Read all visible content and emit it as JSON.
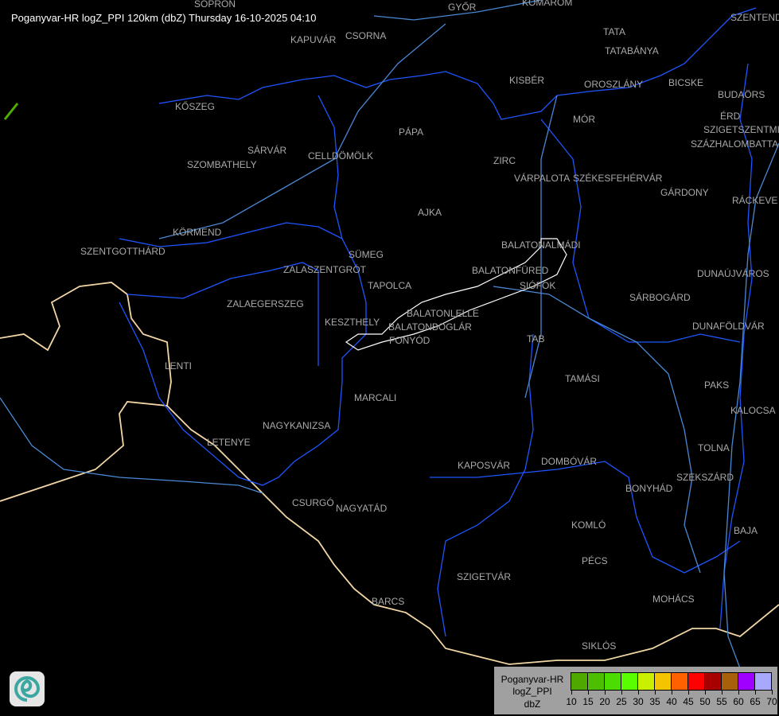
{
  "title": "Poganyvar-HR logZ_PPI 120km (dbZ) Thursday 16-10-2025 04:10",
  "colors": {
    "county_border": "#1f55ff",
    "river": "#4a88d4",
    "national_border": "#f2d6a6",
    "lake_outline": "#ffffff",
    "label": "#a9a9a9",
    "echo": "#4fae00"
  },
  "cities": [
    "SOPRON",
    "GYŐR",
    "KOMÁROM",
    "SZENTEND",
    "TATA",
    "TATABÁNYA",
    "KAPUVÁR",
    "CSORNA",
    "KISBÉR",
    "OROSZLÁNY",
    "BICSKE",
    "BUDAÖRS",
    "KŐSZEG",
    "ÉRD",
    "MÓR",
    "SZIGETSZENTMI",
    "SZÁZHALOMBATTA",
    "PÁPA",
    "SÁRVÁR",
    "CELLDÖMÖLK",
    "SZOMBATHELY",
    "ZIRC",
    "VÁRPALOTA",
    "SZÉKESFEHÉRVÁR",
    "GÁRDONY",
    "RÁCKEVE",
    "AJKA",
    "KÖRMEND",
    "BALATONALMÁDI",
    "SZENTGOTTHÁRD",
    "SÜMEG",
    "ZALASZENTGRÓT",
    "BALATONFÜRED",
    "DUNAÚJVÁROS",
    "SIÓFOK",
    "TAPOLCA",
    "ZALAEGERSZEG",
    "SÁRBOGÁRD",
    "KESZTHELY",
    "BALATONLELLE",
    "BALATONBOGLÁR",
    "FONYÓD",
    "DUNAFÖLDVÁR",
    "TAB",
    "LENTI",
    "TAMÁSI",
    "PAKS",
    "MARCALI",
    "KALOCSA",
    "NAGYKANIZSA",
    "LETENYE",
    "TOLNA",
    "KAPOSVÁR",
    "DOMBÓVÁR",
    "SZEKSZÁRD",
    "BONYHÁD",
    "CSURGÓ",
    "NAGYATÁD",
    "KOMLÓ",
    "BAJA",
    "PÉCS",
    "SZIGETVÁR",
    "MOHÁCS",
    "BARCS",
    "SIKLÓS"
  ],
  "legend": {
    "station": "Poganyvar-HR",
    "product": "logZ_PPI",
    "unit": "dbZ",
    "ticks": [
      "10",
      "15",
      "20",
      "25",
      "30",
      "35",
      "40",
      "45",
      "50",
      "55",
      "60",
      "65",
      "70"
    ],
    "colors": [
      "#4fa800",
      "#4cbf00",
      "#4cdc00",
      "#59ff00",
      "#c8f000",
      "#f5c400",
      "#ff6000",
      "#ff0000",
      "#a80000",
      "#a8600a",
      "#a000ff",
      "#a8a8ff"
    ]
  },
  "logo": "radar-service-logo"
}
